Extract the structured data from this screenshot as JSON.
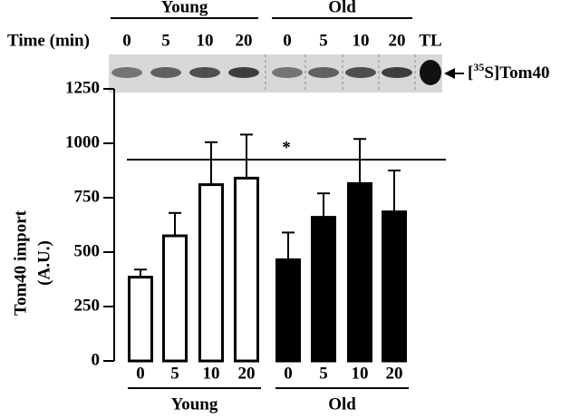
{
  "blot": {
    "time_label": "Time (min)",
    "groups": [
      "Young",
      "Old"
    ],
    "lanes": [
      "0",
      "5",
      "10",
      "20",
      "0",
      "5",
      "10",
      "20",
      "TL"
    ],
    "band_label": {
      "open": "[",
      "sup": "35",
      "rest": "S]Tom40"
    }
  },
  "chart_data": {
    "type": "bar",
    "ylabel": [
      "Tom40 import",
      "(A.U.)"
    ],
    "annotation": "*",
    "categories": [
      "0",
      "5",
      "10",
      "20"
    ],
    "series": [
      {
        "name": "Young",
        "color": "#ffffff",
        "values": [
          385,
          575,
          810,
          840
        ],
        "errors": [
          35,
          105,
          195,
          200
        ]
      },
      {
        "name": "Old",
        "color": "#000000",
        "values": [
          465,
          660,
          815,
          685
        ],
        "errors": [
          125,
          110,
          205,
          190
        ]
      }
    ],
    "ylim": [
      0,
      1250
    ],
    "yticks": [
      0,
      250,
      500,
      750,
      1000,
      1250
    ]
  }
}
